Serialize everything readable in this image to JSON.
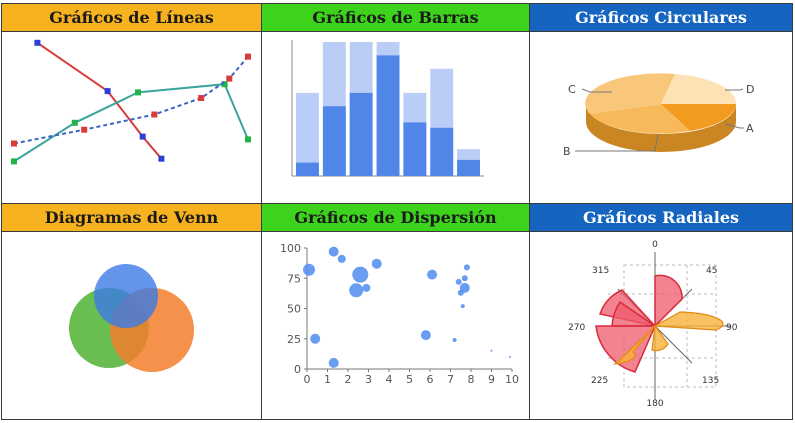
{
  "colors": {
    "orange_header": "#f7b31f",
    "green_header": "#3dd21c",
    "blue_header": "#1565c0"
  },
  "panels": [
    {
      "title": "Gráficos de Líneas"
    },
    {
      "title": "Gráficos de Barras"
    },
    {
      "title": "Gráficos Circulares"
    },
    {
      "title": "Diagramas de Venn"
    },
    {
      "title": "Gráficos de Dispersión"
    },
    {
      "title": "Gráficos Radiales"
    }
  ],
  "pie": {
    "labels": {
      "a": "A",
      "b": "B",
      "c": "C",
      "d": "D"
    }
  },
  "scatter": {
    "x_ticks": [
      "0",
      "1",
      "2",
      "3",
      "4",
      "5",
      "6",
      "7",
      "8",
      "9",
      "10"
    ],
    "y_ticks": [
      "0",
      "25",
      "50",
      "75",
      "100"
    ]
  },
  "radar": {
    "angle_labels": {
      "a0": "0",
      "a45": "45",
      "a90": "90",
      "a135": "135",
      "a180": "180",
      "a225": "225",
      "a270": "270",
      "a315": "315"
    }
  },
  "chart_data": [
    {
      "type": "line",
      "series": [
        {
          "color": "#d93a3a",
          "values": [
            [
              0.1,
              0.98
            ],
            [
              0.4,
              0.63
            ],
            [
              0.55,
              0.3
            ],
            [
              0.63,
              0.14
            ]
          ]
        },
        {
          "color": "#3aa59a",
          "values": [
            [
              0.0,
              0.12
            ],
            [
              0.26,
              0.4
            ],
            [
              0.53,
              0.62
            ],
            [
              0.9,
              0.68
            ],
            [
              1.0,
              0.28
            ]
          ]
        },
        {
          "color": "#3a63c9",
          "dashed": true,
          "values": [
            [
              0.0,
              0.25
            ],
            [
              0.3,
              0.35
            ],
            [
              0.6,
              0.46
            ],
            [
              0.8,
              0.58
            ],
            [
              0.92,
              0.72
            ],
            [
              1.0,
              0.88
            ]
          ]
        }
      ]
    },
    {
      "type": "bar",
      "series": [
        {
          "color": "#b9cdf6",
          "values": [
            62,
            100,
            100,
            100,
            62,
            80,
            20
          ]
        },
        {
          "color": "#4f86e8",
          "values": [
            10,
            52,
            62,
            90,
            40,
            36,
            12
          ]
        }
      ]
    },
    {
      "type": "pie",
      "categories": [
        "A",
        "B",
        "C",
        "D"
      ],
      "values": [
        15,
        35,
        32,
        18
      ]
    },
    {
      "type": "venn",
      "sets": [
        {
          "color": "#3b7be6"
        },
        {
          "color": "#4fb233"
        },
        {
          "color": "#f37e2c"
        }
      ]
    },
    {
      "type": "scatter",
      "xlim": [
        0,
        10
      ],
      "ylim": [
        0,
        100
      ],
      "points": [
        [
          0.1,
          82,
          6
        ],
        [
          0.4,
          25,
          5
        ],
        [
          1.3,
          97,
          5
        ],
        [
          1.3,
          5,
          5
        ],
        [
          1.7,
          91,
          4
        ],
        [
          2.4,
          65,
          7
        ],
        [
          2.6,
          78,
          8
        ],
        [
          2.9,
          67,
          4
        ],
        [
          3.4,
          87,
          5
        ],
        [
          5.8,
          28,
          5
        ],
        [
          6.1,
          78,
          5
        ],
        [
          7.4,
          72,
          3
        ],
        [
          7.5,
          63,
          3
        ],
        [
          7.7,
          75,
          3
        ],
        [
          7.8,
          84,
          3
        ],
        [
          7.6,
          52,
          2
        ],
        [
          7.7,
          67,
          5
        ],
        [
          7.2,
          24,
          2
        ],
        [
          9.0,
          15,
          1
        ],
        [
          9.9,
          10,
          1
        ]
      ]
    },
    {
      "type": "radar",
      "angles": [
        0,
        45,
        90,
        135,
        180,
        225,
        270,
        315
      ]
    }
  ]
}
